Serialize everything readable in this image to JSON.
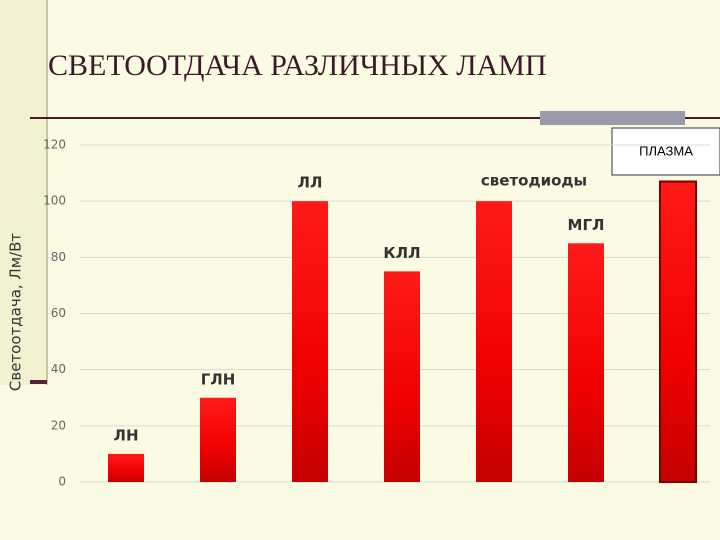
{
  "chart_data": {
    "type": "bar",
    "title": "СВЕТООТДАЧА РАЗЛИЧНЫХ ЛАМП",
    "y_label": "Светоотдача, Лм/Вт",
    "categories": [
      "ЛН",
      "ГЛН",
      "ЛЛ",
      "КЛЛ",
      "светодиоды",
      "МГЛ",
      "ПЛАЗМА"
    ],
    "values": [
      10,
      30,
      100,
      75,
      100,
      85,
      107
    ],
    "color": "#ff0000",
    "ylim": [
      0,
      120
    ],
    "yticks": [
      0,
      20,
      40,
      60,
      80,
      100,
      120
    ],
    "grid": true
  }
}
